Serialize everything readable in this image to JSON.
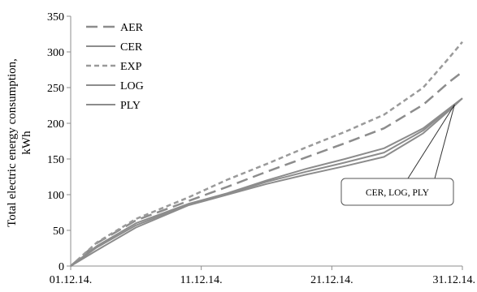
{
  "chart_data": {
    "type": "line",
    "ylabel_lines": [
      "Total electric energy consumption,",
      "kWh"
    ],
    "xlabel": "",
    "ylim": [
      0,
      350
    ],
    "yticks": [
      0,
      50,
      100,
      150,
      200,
      250,
      300,
      350
    ],
    "xlim": [
      1,
      31
    ],
    "xticks": [
      1,
      11,
      21,
      31
    ],
    "xtick_labels": [
      "01.12.14.",
      "11.12.14.",
      "21.12.14.",
      "31.12.14."
    ],
    "grid": false,
    "legend_position": "top-left",
    "series": [
      {
        "name": "AER",
        "dash": "long-dash",
        "color": "#8c8c8c",
        "width": 2.5,
        "x": [
          1,
          3,
          6,
          10,
          13,
          16,
          19,
          22,
          25,
          28,
          30,
          31
        ],
        "y": [
          0,
          32,
          64,
          91,
          111,
          132,
          152,
          172,
          193,
          226,
          258,
          272
        ]
      },
      {
        "name": "CER",
        "dash": "solid",
        "color": "#8c8c8c",
        "width": 2,
        "x": [
          1,
          3,
          6,
          10,
          13,
          16,
          19,
          22,
          25,
          28,
          30,
          31
        ],
        "y": [
          0,
          28,
          60,
          87,
          102,
          120,
          136,
          150,
          165,
          193,
          221,
          235
        ]
      },
      {
        "name": "EXP",
        "dash": "short-dash",
        "color": "#9a9a9a",
        "width": 2.5,
        "x": [
          1,
          3,
          6,
          10,
          13,
          16,
          19,
          22,
          25,
          28,
          30,
          31
        ],
        "y": [
          0,
          33,
          66,
          96,
          121,
          143,
          166,
          188,
          212,
          250,
          292,
          314
        ]
      },
      {
        "name": "LOG",
        "dash": "solid",
        "color": "#8c8c8c",
        "width": 2,
        "x": [
          1,
          3,
          6,
          10,
          13,
          16,
          19,
          22,
          25,
          28,
          30,
          31
        ],
        "y": [
          0,
          26,
          57,
          86,
          101,
          118,
          132,
          145,
          159,
          190,
          220,
          235
        ]
      },
      {
        "name": "PLY",
        "dash": "solid",
        "color": "#8c8c8c",
        "width": 2,
        "x": [
          1,
          3,
          6,
          10,
          13,
          16,
          19,
          22,
          25,
          28,
          30,
          31
        ],
        "y": [
          0,
          22,
          54,
          85,
          100,
          115,
          128,
          140,
          153,
          186,
          218,
          235
        ]
      }
    ],
    "annotation": {
      "text": "CER, LOG, PLY",
      "point_x": 30.4,
      "point_y": 226
    }
  }
}
